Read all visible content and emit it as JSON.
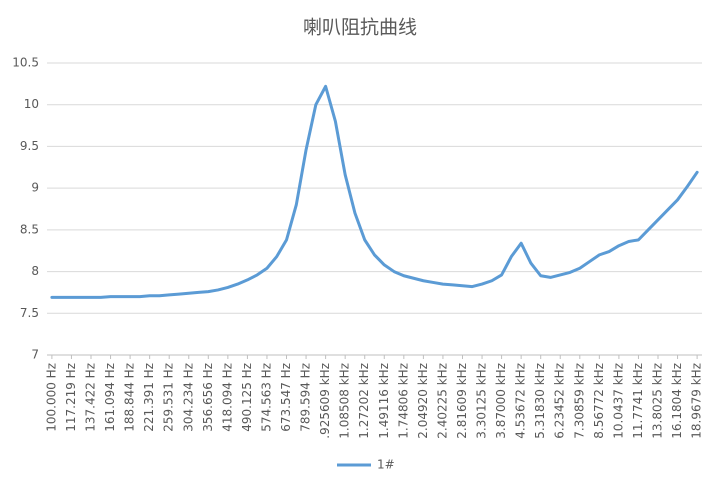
{
  "chart_data": {
    "type": "line",
    "title": "喇叭阻抗曲线",
    "categories": [
      "100.000 Hz",
      null,
      "117.219 Hz",
      null,
      "137.422 Hz",
      null,
      "161.094 Hz",
      null,
      "188.844 Hz",
      null,
      "221.391 Hz",
      null,
      "259.531 Hz",
      null,
      "304.234 Hz",
      null,
      "356.656 Hz",
      null,
      "418.094 Hz",
      null,
      "490.125 Hz",
      null,
      "574.563 Hz",
      null,
      "673.547 Hz",
      null,
      "789.594 Hz",
      null,
      ".925609 kHz",
      null,
      "1.08508 kHz",
      null,
      "1.27202 kHz",
      null,
      "1.49116 kHz",
      null,
      "1.74806 kHz",
      null,
      "2.04920 kHz",
      null,
      "2.40225 kHz",
      null,
      "2.81609 kHz",
      null,
      "3.30125 kHz",
      null,
      "3.87000 kHz",
      null,
      "4.53672 kHz",
      null,
      "5.31830 kHz",
      null,
      "6.23452 kHz",
      null,
      "7.30859 kHz",
      null,
      "8.56772 kHz",
      null,
      "10.0437 kHz",
      null,
      "11.7741 kHz",
      null,
      "13.8025 kHz",
      null,
      "16.1804 kHz",
      null,
      "18.9679 kHz"
    ],
    "series": [
      {
        "name": "1#",
        "color": "#5b9bd5",
        "values": [
          7.69,
          7.69,
          7.69,
          7.69,
          7.69,
          7.69,
          7.7,
          7.7,
          7.7,
          7.7,
          7.71,
          7.71,
          7.72,
          7.73,
          7.74,
          7.75,
          7.76,
          7.78,
          7.81,
          7.85,
          7.9,
          7.96,
          8.04,
          8.18,
          8.38,
          8.8,
          9.46,
          10.0,
          10.22,
          9.8,
          9.16,
          8.7,
          8.38,
          8.2,
          8.08,
          8.0,
          7.95,
          7.92,
          7.89,
          7.87,
          7.85,
          7.84,
          7.83,
          7.82,
          7.85,
          7.89,
          7.96,
          8.18,
          8.34,
          8.1,
          7.95,
          7.93,
          7.96,
          7.99,
          8.04,
          8.12,
          8.2,
          8.24,
          8.31,
          8.36,
          8.38,
          8.5,
          8.62,
          8.74,
          8.86,
          9.02,
          9.19
        ]
      }
    ],
    "ylim": [
      7,
      10.5
    ],
    "yticks": [
      7,
      7.5,
      8,
      8.5,
      9,
      9.5,
      10,
      10.5
    ],
    "grid": true,
    "legend": "bottom"
  }
}
